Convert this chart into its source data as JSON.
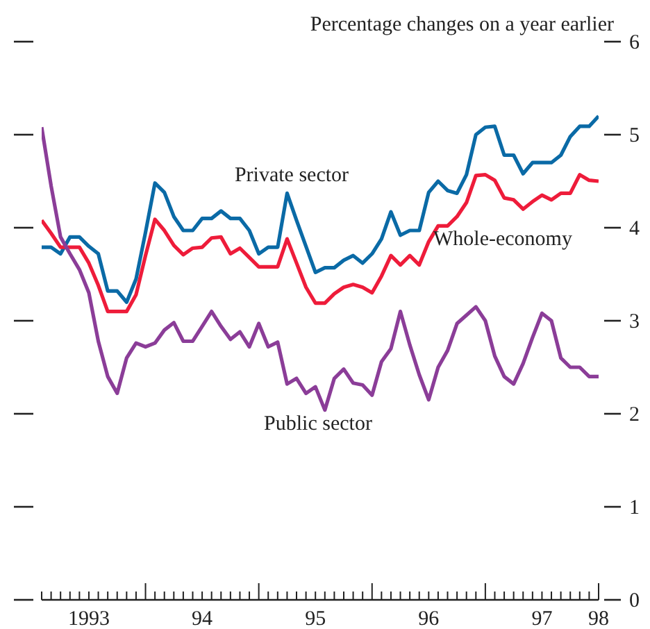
{
  "chart_data": {
    "type": "line",
    "title": "Percentage changes on a year earlier",
    "x": [
      "1993-02",
      "1993-03",
      "1993-04",
      "1993-05",
      "1993-06",
      "1993-07",
      "1993-08",
      "1993-09",
      "1993-10",
      "1993-11",
      "1993-12",
      "1994-01",
      "1994-02",
      "1994-03",
      "1994-04",
      "1994-05",
      "1994-06",
      "1994-07",
      "1994-08",
      "1994-09",
      "1994-10",
      "1994-11",
      "1994-12",
      "1995-01",
      "1995-02",
      "1995-03",
      "1995-04",
      "1995-05",
      "1995-06",
      "1995-07",
      "1995-08",
      "1995-09",
      "1995-10",
      "1995-11",
      "1995-12",
      "1996-01",
      "1996-02",
      "1996-03",
      "1996-04",
      "1996-05",
      "1996-06",
      "1996-07",
      "1996-08",
      "1996-09",
      "1996-10",
      "1996-11",
      "1996-12",
      "1997-01",
      "1997-02",
      "1997-03",
      "1997-04",
      "1997-05",
      "1997-06",
      "1997-07",
      "1997-08",
      "1997-09",
      "1997-10",
      "1997-11",
      "1997-12",
      "1998-01"
    ],
    "series": [
      {
        "name": "Private sector",
        "color": "#0a6aa6",
        "values": [
          3.79,
          3.79,
          3.72,
          3.9,
          3.9,
          3.8,
          3.72,
          3.32,
          3.32,
          3.2,
          3.45,
          3.95,
          4.48,
          4.38,
          4.12,
          3.97,
          3.97,
          4.1,
          4.1,
          4.18,
          4.1,
          4.1,
          3.97,
          3.72,
          3.79,
          3.79,
          4.37,
          4.08,
          3.8,
          3.52,
          3.57,
          3.57,
          3.65,
          3.7,
          3.62,
          3.72,
          3.88,
          4.17,
          3.92,
          3.97,
          3.97,
          4.38,
          4.5,
          4.4,
          4.37,
          4.57,
          5.0,
          5.08,
          5.09,
          4.78,
          4.78,
          4.58,
          4.7,
          4.7,
          4.7,
          4.78,
          4.98,
          5.09,
          5.09,
          5.2
        ]
      },
      {
        "name": "Whole-economy",
        "color": "#ee1c3a",
        "values": [
          4.08,
          3.94,
          3.79,
          3.79,
          3.79,
          3.62,
          3.38,
          3.1,
          3.1,
          3.1,
          3.28,
          3.7,
          4.09,
          3.97,
          3.81,
          3.71,
          3.78,
          3.79,
          3.89,
          3.9,
          3.72,
          3.78,
          3.68,
          3.58,
          3.58,
          3.58,
          3.88,
          3.62,
          3.36,
          3.19,
          3.19,
          3.29,
          3.36,
          3.39,
          3.36,
          3.3,
          3.48,
          3.7,
          3.6,
          3.7,
          3.6,
          3.85,
          4.02,
          4.02,
          4.12,
          4.27,
          4.56,
          4.57,
          4.51,
          4.32,
          4.3,
          4.2,
          4.28,
          4.35,
          4.3,
          4.37,
          4.37,
          4.57,
          4.51,
          4.5
        ]
      },
      {
        "name": "Public sector",
        "color": "#8b3d98",
        "values": [
          5.08,
          4.45,
          3.9,
          3.72,
          3.55,
          3.3,
          2.78,
          2.4,
          2.22,
          2.6,
          2.76,
          2.72,
          2.76,
          2.9,
          2.98,
          2.78,
          2.78,
          2.94,
          3.1,
          2.94,
          2.8,
          2.88,
          2.72,
          2.97,
          2.72,
          2.77,
          2.32,
          2.38,
          2.22,
          2.29,
          2.04,
          2.38,
          2.48,
          2.33,
          2.31,
          2.2,
          2.56,
          2.7,
          3.1,
          2.74,
          2.42,
          2.15,
          2.5,
          2.68,
          2.97,
          3.06,
          3.15,
          3.0,
          2.62,
          2.4,
          2.32,
          2.54,
          2.82,
          3.08,
          3.0,
          2.6,
          2.5,
          2.5,
          2.4,
          2.4
        ]
      }
    ],
    "xlim": [
      "1993-02",
      "1998-01"
    ],
    "xticks": [
      {
        "value": "1993-02",
        "label": null
      },
      {
        "value": "1993-03",
        "label": null
      },
      {
        "value": "1993-04",
        "label": null
      },
      {
        "value": "1993-05",
        "label": null
      },
      {
        "value": "1993-06",
        "label": null
      },
      {
        "value": "1993-07",
        "label": "1993"
      },
      {
        "value": "1993-08",
        "label": null
      },
      {
        "value": "1993-09",
        "label": null
      },
      {
        "value": "1993-10",
        "label": null
      },
      {
        "value": "1993-11",
        "label": null
      },
      {
        "value": "1993-12",
        "label": null
      },
      {
        "value": "1994-01",
        "label": null
      },
      {
        "value": "1994-02",
        "label": null
      },
      {
        "value": "1994-03",
        "label": null
      },
      {
        "value": "1994-04",
        "label": null
      },
      {
        "value": "1994-05",
        "label": null
      },
      {
        "value": "1994-06",
        "label": null
      },
      {
        "value": "1994-07",
        "label": "94"
      },
      {
        "value": "1994-08",
        "label": null
      },
      {
        "value": "1994-09",
        "label": null
      },
      {
        "value": "1994-10",
        "label": null
      },
      {
        "value": "1994-11",
        "label": null
      },
      {
        "value": "1994-12",
        "label": null
      },
      {
        "value": "1995-01",
        "label": null
      },
      {
        "value": "1995-02",
        "label": null
      },
      {
        "value": "1995-03",
        "label": null
      },
      {
        "value": "1995-04",
        "label": null
      },
      {
        "value": "1995-05",
        "label": null
      },
      {
        "value": "1995-06",
        "label": null
      },
      {
        "value": "1995-07",
        "label": "95"
      },
      {
        "value": "1995-08",
        "label": null
      },
      {
        "value": "1995-09",
        "label": null
      },
      {
        "value": "1995-10",
        "label": null
      },
      {
        "value": "1995-11",
        "label": null
      },
      {
        "value": "1995-12",
        "label": null
      },
      {
        "value": "1996-01",
        "label": null
      },
      {
        "value": "1996-02",
        "label": null
      },
      {
        "value": "1996-03",
        "label": null
      },
      {
        "value": "1996-04",
        "label": null
      },
      {
        "value": "1996-05",
        "label": null
      },
      {
        "value": "1996-06",
        "label": null
      },
      {
        "value": "1996-07",
        "label": "96"
      },
      {
        "value": "1996-08",
        "label": null
      },
      {
        "value": "1996-09",
        "label": null
      },
      {
        "value": "1996-10",
        "label": null
      },
      {
        "value": "1996-11",
        "label": null
      },
      {
        "value": "1996-12",
        "label": null
      },
      {
        "value": "1997-01",
        "label": null
      },
      {
        "value": "1997-02",
        "label": null
      },
      {
        "value": "1997-03",
        "label": null
      },
      {
        "value": "1997-04",
        "label": null
      },
      {
        "value": "1997-05",
        "label": null
      },
      {
        "value": "1997-06",
        "label": null
      },
      {
        "value": "1997-07",
        "label": "97"
      },
      {
        "value": "1997-08",
        "label": null
      },
      {
        "value": "1997-09",
        "label": null
      },
      {
        "value": "1997-10",
        "label": null
      },
      {
        "value": "1997-11",
        "label": null
      },
      {
        "value": "1997-12",
        "label": null
      },
      {
        "value": "1998-01",
        "label": "98"
      }
    ],
    "ylim": [
      0,
      6
    ],
    "yticks": [
      0,
      1,
      2,
      3,
      4,
      5,
      6
    ]
  }
}
